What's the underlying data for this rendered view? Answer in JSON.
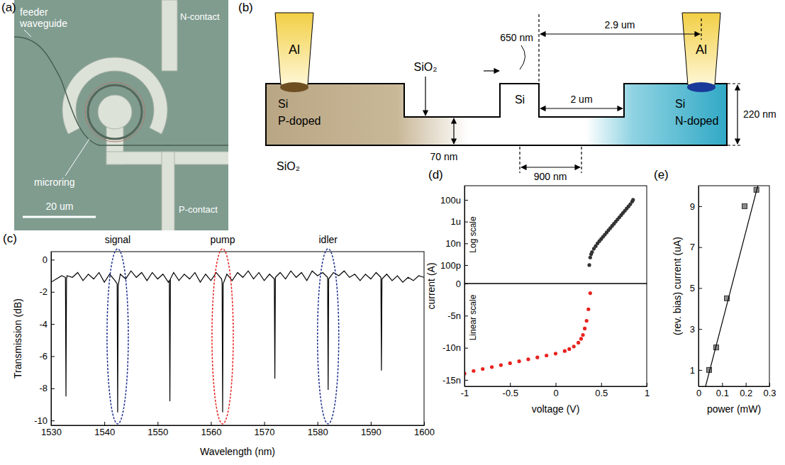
{
  "chart_data": [
    {
      "type": "line",
      "title": "(c)",
      "xlabel": "Wavelength (nm)",
      "ylabel": "Transmission (dB)",
      "color": "#000000",
      "x": [
        1530,
        1531,
        1532,
        1532.7,
        1532.8,
        1532.9,
        1533,
        1534,
        1535,
        1536,
        1537,
        1538,
        1539,
        1540,
        1541,
        1542,
        1542.4,
        1542.5,
        1542.6,
        1543,
        1544,
        1545,
        1546,
        1547,
        1548,
        1549,
        1550,
        1551,
        1552,
        1552.2,
        1552.3,
        1552.4,
        1553,
        1554,
        1555,
        1556,
        1557,
        1558,
        1559,
        1560,
        1561,
        1562,
        1562.1,
        1562.2,
        1562.3,
        1563,
        1564,
        1565,
        1566,
        1567,
        1568,
        1569,
        1570,
        1571,
        1571.9,
        1572,
        1572.1,
        1573,
        1574,
        1575,
        1576,
        1577,
        1578,
        1579,
        1580,
        1581,
        1581.9,
        1582,
        1582.1,
        1583,
        1584,
        1585,
        1586,
        1587,
        1588,
        1589,
        1590,
        1591,
        1591.9,
        1592,
        1592.1,
        1593,
        1594,
        1595,
        1596,
        1597,
        1598,
        1599,
        1600
      ],
      "values": [
        -1.4,
        -1.2,
        -1.0,
        -1.1,
        -8.5,
        -1.2,
        -1.0,
        -1.1,
        -0.8,
        -1.3,
        -0.9,
        -1.2,
        -0.8,
        -1.4,
        -0.9,
        -1.3,
        -1.5,
        -9.5,
        -1.6,
        -0.9,
        -1.2,
        -0.7,
        -1.1,
        -0.8,
        -1.3,
        -0.8,
        -1.2,
        -0.9,
        -1.4,
        -1.3,
        -8.8,
        -1.2,
        -0.8,
        -1.3,
        -0.9,
        -1.2,
        -0.8,
        -1.4,
        -0.9,
        -1.3,
        -0.8,
        -1.2,
        -1.4,
        -9.5,
        -1.5,
        -0.9,
        -1.3,
        -0.8,
        -1.1,
        -0.7,
        -1.2,
        -0.8,
        -1.3,
        -0.9,
        -1.2,
        -7.4,
        -1.1,
        -0.8,
        -1.2,
        -0.7,
        -1.1,
        -0.8,
        -1.3,
        -0.7,
        -1.0,
        -0.8,
        -1.1,
        -8.1,
        -1.2,
        -0.8,
        -1.0,
        -0.7,
        -1.1,
        -0.9,
        -1.3,
        -0.9,
        -1.2,
        -0.8,
        -1.1,
        -6.9,
        -1.2,
        -0.9,
        -1.3,
        -1.0,
        -1.4,
        -1.1,
        -1.3,
        -1.0,
        -1.1
      ],
      "xlim": [
        1530,
        1600
      ],
      "xticks": [
        1530,
        1540,
        1550,
        1560,
        1570,
        1580,
        1590,
        1600
      ],
      "ylim": [
        -10.3,
        0.5
      ],
      "yticks": [
        0,
        -2,
        -4,
        -6,
        -8,
        -10
      ],
      "annotations": [
        {
          "text": "signal",
          "x": 1542.5,
          "color": "#1f2f8f"
        },
        {
          "text": "pump",
          "x": 1562.2,
          "color": "#e52320"
        },
        {
          "text": "idler",
          "x": 1582,
          "color": "#1f2f8f"
        }
      ]
    },
    {
      "type": "scatter",
      "title": "(d)",
      "ylabel": "current (A)",
      "color": "#333333",
      "marker": "circle",
      "log": "y",
      "tick_labels": "y",
      "x": [
        0.37,
        0.38,
        0.39,
        0.4,
        0.42,
        0.44,
        0.46,
        0.48,
        0.5,
        0.52,
        0.54,
        0.56,
        0.58,
        0.6,
        0.62,
        0.64,
        0.66,
        0.68,
        0.7,
        0.72,
        0.74,
        0.76,
        0.78,
        0.8,
        0.82,
        0.84,
        0.85
      ],
      "values": [
        1e-10,
        5e-10,
        1e-09,
        1.6e-09,
        3.2e-09,
        5.6e-09,
        1e-08,
        1.6e-08,
        2.5e-08,
        4e-08,
        6.3e-08,
        1e-07,
        1.6e-07,
        2.5e-07,
        4e-07,
        6.3e-07,
        1e-06,
        1.6e-06,
        2.5e-06,
        4e-06,
        6.3e-06,
        1e-05,
        1.6e-05,
        2.5e-05,
        4e-05,
        7e-05,
        0.0001
      ],
      "xlim": [
        -1,
        1
      ],
      "ylim": [
        2e-12,
        0.002
      ],
      "yticks": [
        {
          "value": 1e-10,
          "label": "100p"
        },
        {
          "value": 1e-08,
          "label": "10n"
        },
        {
          "value": 1e-06,
          "label": "1u"
        },
        {
          "value": 0.0001,
          "label": "100u"
        }
      ],
      "annotations": [
        {
          "text": "Log scale"
        }
      ]
    },
    {
      "type": "scatter",
      "xlabel": "voltage (V)",
      "color": "#e8231f",
      "marker": "circle",
      "x": [
        -1,
        -0.9,
        -0.8,
        -0.7,
        -0.6,
        -0.5,
        -0.4,
        -0.3,
        -0.2,
        -0.1,
        0,
        0.1,
        0.15,
        0.2,
        0.25,
        0.28,
        0.3,
        0.32,
        0.34,
        0.36,
        0.38
      ],
      "values": [
        -1.4e-08,
        -1.36e-08,
        -1.33e-08,
        -1.3e-08,
        -1.27e-08,
        -1.24e-08,
        -1.21e-08,
        -1.18e-08,
        -1.15e-08,
        -1.12e-08,
        -1.09e-08,
        -1.05e-08,
        -1.02e-08,
        -9.8e-09,
        -9.2e-09,
        -8.6e-09,
        -8e-09,
        -7e-09,
        -5.8e-09,
        -4e-09,
        -1.5e-09
      ],
      "xlim": [
        -1,
        1
      ],
      "xticks": [
        -1,
        -0.5,
        0,
        0.5,
        1
      ],
      "ylim": [
        -1.6e-08,
        0
      ],
      "yticks": [
        0,
        {
          "value": -5e-09,
          "label": "-5n"
        },
        {
          "value": -1e-08,
          "label": "-10n"
        },
        {
          "value": -1.5e-08,
          "label": "-15n"
        }
      ],
      "annotations": [
        {
          "text": "Linear scale"
        }
      ]
    },
    {
      "type": "scatter",
      "title": "(e)",
      "xlabel": "power (mW)",
      "ylabel": "(rev. bias) current (uA)",
      "color": "#8a8a8a",
      "marker": "square",
      "x": [
        0.045,
        0.075,
        0.12,
        0.195,
        0.245
      ],
      "values": [
        1.0,
        2.1,
        4.5,
        9.0,
        9.8
      ],
      "fit": {
        "x": [
          0.03,
          0.26
        ],
        "values": [
          0.2,
          10.4
        ]
      },
      "xlim": [
        0,
        0.3
      ],
      "xticks": [
        0,
        0.1,
        0.2,
        0.3
      ],
      "ylim": [
        0.2,
        10
      ],
      "yticks": [
        1,
        3,
        5,
        7,
        9
      ]
    }
  ],
  "micrograph": {
    "label": "(a)",
    "feeder": "feeder waveguide",
    "n_contact": "N-contact",
    "microring": "microring",
    "p_contact": "P-contact",
    "scale_bar": "20 um"
  },
  "cross_section": {
    "label": "(b)",
    "al_left": "Al",
    "al_right": "Al",
    "oxide_top": "SiO₂",
    "rib_width": "650 nm",
    "contact_distance": "2.9 um",
    "p_si": "Si",
    "p_doped": "P-doped",
    "rib_si": "Si",
    "gap": "2 um",
    "n_si": "Si",
    "n_doped": "N-doped",
    "height": "220 nm",
    "oxide_bottom": "SiO₂",
    "slab": "70 nm",
    "offset": "900 nm"
  }
}
